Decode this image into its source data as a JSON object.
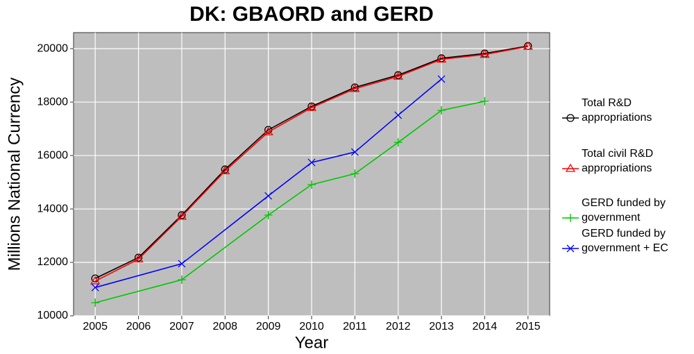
{
  "chart_data": {
    "type": "line",
    "title": "DK: GBAORD and GERD",
    "x_label": "Year",
    "y_label": "Millions National Currency",
    "xlim": [
      2004.5,
      2015.5
    ],
    "xticks": [
      2005,
      2006,
      2007,
      2008,
      2009,
      2010,
      2011,
      2012,
      2013,
      2014,
      2015
    ],
    "ylim": [
      10000,
      20600
    ],
    "yticks": [
      10000,
      12000,
      14000,
      16000,
      18000,
      20000
    ],
    "grid": true,
    "legend": "right",
    "series": [
      {
        "name": "Total R&D appropriations",
        "color": "#000000",
        "marker": "circle",
        "x": [
          2005,
          2006,
          2007,
          2008,
          2009,
          2010,
          2011,
          2012,
          2013,
          2014,
          2015
        ],
        "values": [
          11400,
          12180,
          13770,
          15480,
          16960,
          17840,
          18550,
          19010,
          19640,
          19820,
          20100
        ]
      },
      {
        "name": "Total civil R&D appropriations",
        "color": "#ff0000",
        "marker": "triangle",
        "x": [
          2005,
          2006,
          2007,
          2008,
          2009,
          2010,
          2011,
          2012,
          2013,
          2014,
          2015
        ],
        "values": [
          11300,
          12120,
          13720,
          15420,
          16880,
          17790,
          18500,
          18960,
          19600,
          19780,
          20080
        ]
      },
      {
        "name": "GERD funded by government",
        "color": "#00c800",
        "marker": "plus",
        "x": [
          2005,
          2007,
          2009,
          2010,
          2011,
          2012,
          2013,
          2014
        ],
        "values": [
          10490,
          11350,
          13770,
          14910,
          15320,
          16490,
          17690,
          18030
        ]
      },
      {
        "name": "GERD funded by government + EC",
        "color": "#0000ff",
        "marker": "cross",
        "x": [
          2005,
          2007,
          2009,
          2010,
          2011,
          2012,
          2013
        ],
        "values": [
          11060,
          11950,
          14490,
          15740,
          16130,
          17510,
          18860
        ]
      }
    ]
  }
}
